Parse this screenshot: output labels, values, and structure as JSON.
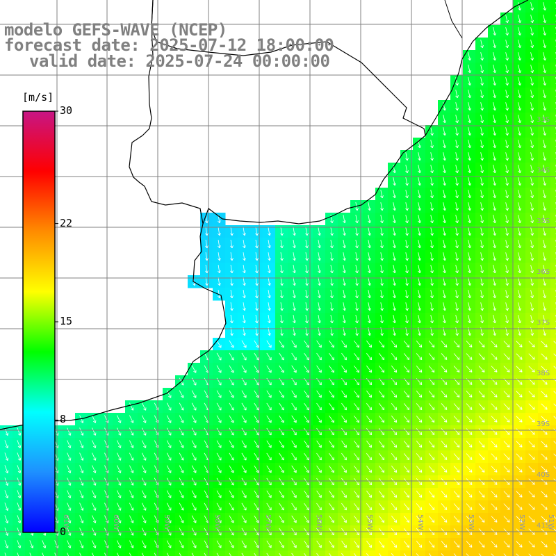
{
  "header": {
    "model_title": "modelo GEFS-WAVE (NCEP)",
    "forecast_label": "forecast date: 2025-07-12 18:00:00",
    "valid_label": "valid date: 2025-07-24 00:00:00"
  },
  "colorbar": {
    "unit": "[m/s]",
    "min": 0,
    "max": 30,
    "ticks": [
      {
        "label": "30",
        "value": 30
      },
      {
        "label": "22",
        "value": 22
      },
      {
        "label": "15",
        "value": 15
      },
      {
        "label": "8",
        "value": 8
      },
      {
        "label": "0",
        "value": 0
      }
    ],
    "gradient": [
      "#0000ff",
      "#1e90ff",
      "#00ffff",
      "#00ff00",
      "#ffff00",
      "#ff8c00",
      "#ff0000",
      "#c71585"
    ]
  },
  "grid": {
    "lat_labels": [
      "33S",
      "34S",
      "35S",
      "36S",
      "37S",
      "38S",
      "39S",
      "40S",
      "41S"
    ],
    "lon_labels": [
      "61W",
      "60W",
      "59W",
      "58W",
      "57W",
      "56W",
      "55W",
      "54W",
      "53W",
      "52W",
      "51W"
    ]
  },
  "colors": {
    "land": "#ffffff",
    "coast": "#000000",
    "gridline": "#808080",
    "arrow": "#ffffff"
  }
}
